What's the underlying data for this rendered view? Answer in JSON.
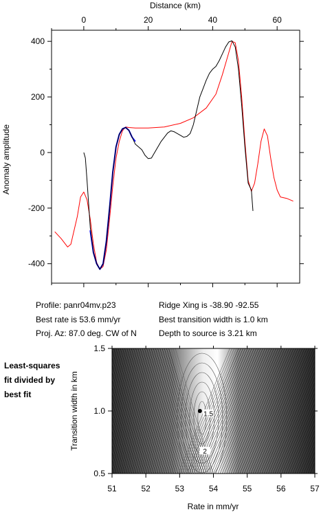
{
  "info": {
    "profile": "Profile: panr04mv.p23",
    "best_rate": "Best rate is 53.6 mm/yr",
    "proj_az": "Proj. Az: 87.0 deg. CW of N",
    "ridge_xing": "Ridge Xing is -38.90 -92.55",
    "best_width": "Best transition width is 1.0 km",
    "depth": "Depth to source is   3.21 km"
  },
  "side_label": "Least-squares\nfit divided by\nbest fit",
  "chart_data": [
    {
      "type": "line",
      "xlabel": "Distance (km)",
      "ylabel": "Anomaly amplitude",
      "xlim": [
        -10,
        67
      ],
      "ylim": [
        -470,
        440
      ],
      "xticks": [
        0,
        20,
        40,
        60
      ],
      "yticks": [
        400,
        200,
        0,
        -200,
        -400
      ],
      "grid": false,
      "series": [
        {
          "color": "#ff0000",
          "points": [
            [
              -9,
              -285
            ],
            [
              -7,
              -310
            ],
            [
              -5,
              -340
            ],
            [
              -4,
              -330
            ],
            [
              -2,
              -230
            ],
            [
              -1,
              -160
            ],
            [
              0,
              -142
            ],
            [
              1,
              -170
            ],
            [
              2,
              -240
            ],
            [
              3,
              -330
            ],
            [
              4,
              -395
            ],
            [
              5,
              -420
            ],
            [
              6,
              -410
            ],
            [
              7,
              -350
            ],
            [
              8,
              -240
            ],
            [
              9,
              -120
            ],
            [
              10,
              -20
            ],
            [
              11,
              40
            ],
            [
              12,
              78
            ],
            [
              13,
              92
            ],
            [
              14,
              90
            ],
            [
              16,
              88
            ],
            [
              20,
              88
            ],
            [
              25,
              92
            ],
            [
              30,
              105
            ],
            [
              34,
              125
            ],
            [
              38,
              160
            ],
            [
              41,
              210
            ],
            [
              43,
              280
            ],
            [
              45,
              360
            ],
            [
              46,
              400
            ],
            [
              47,
              395
            ],
            [
              48,
              330
            ],
            [
              49,
              200
            ],
            [
              50,
              40
            ],
            [
              51,
              -100
            ],
            [
              52,
              -140
            ],
            [
              53,
              -110
            ],
            [
              54,
              -40
            ],
            [
              55,
              40
            ],
            [
              56,
              85
            ],
            [
              57,
              60
            ],
            [
              58,
              -20
            ],
            [
              59,
              -90
            ],
            [
              60,
              -135
            ],
            [
              61,
              -160
            ],
            [
              63,
              -165
            ],
            [
              65,
              -175
            ]
          ]
        },
        {
          "color": "#0000ff",
          "points": [
            [
              2,
              -280
            ],
            [
              3,
              -360
            ],
            [
              4,
              -400
            ],
            [
              5,
              -420
            ],
            [
              6,
              -400
            ],
            [
              7,
              -320
            ],
            [
              8,
              -200
            ],
            [
              9,
              -70
            ],
            [
              10,
              20
            ],
            [
              11,
              65
            ],
            [
              12,
              85
            ],
            [
              13,
              90
            ],
            [
              14,
              80
            ],
            [
              15,
              55
            ],
            [
              16,
              40
            ]
          ]
        },
        {
          "color": "#000000",
          "points": [
            [
              0,
              0
            ],
            [
              0.5,
              -20
            ],
            [
              1,
              -100
            ],
            [
              2,
              -270
            ],
            [
              3,
              -360
            ],
            [
              4,
              -400
            ],
            [
              5,
              -420
            ],
            [
              6,
              -400
            ],
            [
              7,
              -320
            ],
            [
              8,
              -200
            ],
            [
              9,
              -70
            ],
            [
              10,
              20
            ],
            [
              11,
              65
            ],
            [
              12,
              85
            ],
            [
              13,
              90
            ],
            [
              14,
              80
            ],
            [
              15,
              55
            ],
            [
              16,
              30
            ],
            [
              17,
              20
            ],
            [
              18,
              10
            ],
            [
              19,
              -10
            ],
            [
              20,
              -22
            ],
            [
              21,
              -20
            ],
            [
              22,
              0
            ],
            [
              24,
              40
            ],
            [
              26,
              70
            ],
            [
              27,
              78
            ],
            [
              28,
              75
            ],
            [
              30,
              62
            ],
            [
              31,
              55
            ],
            [
              32,
              58
            ],
            [
              33,
              68
            ],
            [
              34,
              100
            ],
            [
              35,
              150
            ],
            [
              36,
              200
            ],
            [
              37,
              230
            ],
            [
              38,
              260
            ],
            [
              39,
              285
            ],
            [
              40,
              300
            ],
            [
              41,
              310
            ],
            [
              42,
              330
            ],
            [
              43,
              355
            ],
            [
              44,
              380
            ],
            [
              45,
              398
            ],
            [
              46,
              402
            ],
            [
              47,
              380
            ],
            [
              48,
              300
            ],
            [
              49,
              170
            ],
            [
              50,
              20
            ],
            [
              51,
              -110
            ],
            [
              52,
              -135
            ],
            [
              52.5,
              -210
            ]
          ]
        }
      ]
    },
    {
      "type": "contour",
      "xlabel": "Rate in mm/yr",
      "ylabel": "Transition width in km",
      "xlim": [
        51,
        57
      ],
      "ylim": [
        0.5,
        1.5
      ],
      "xticks": [
        51,
        52,
        53,
        54,
        55,
        56,
        57
      ],
      "yticks": [
        0.5,
        1.0,
        1.5
      ],
      "best_fit": {
        "x": 53.6,
        "y": 1.0
      },
      "contour_labels": [
        {
          "text": "1.5",
          "x": 53.85,
          "y": 0.98
        },
        {
          "text": "2",
          "x": 53.75,
          "y": 0.68
        }
      ]
    }
  ]
}
